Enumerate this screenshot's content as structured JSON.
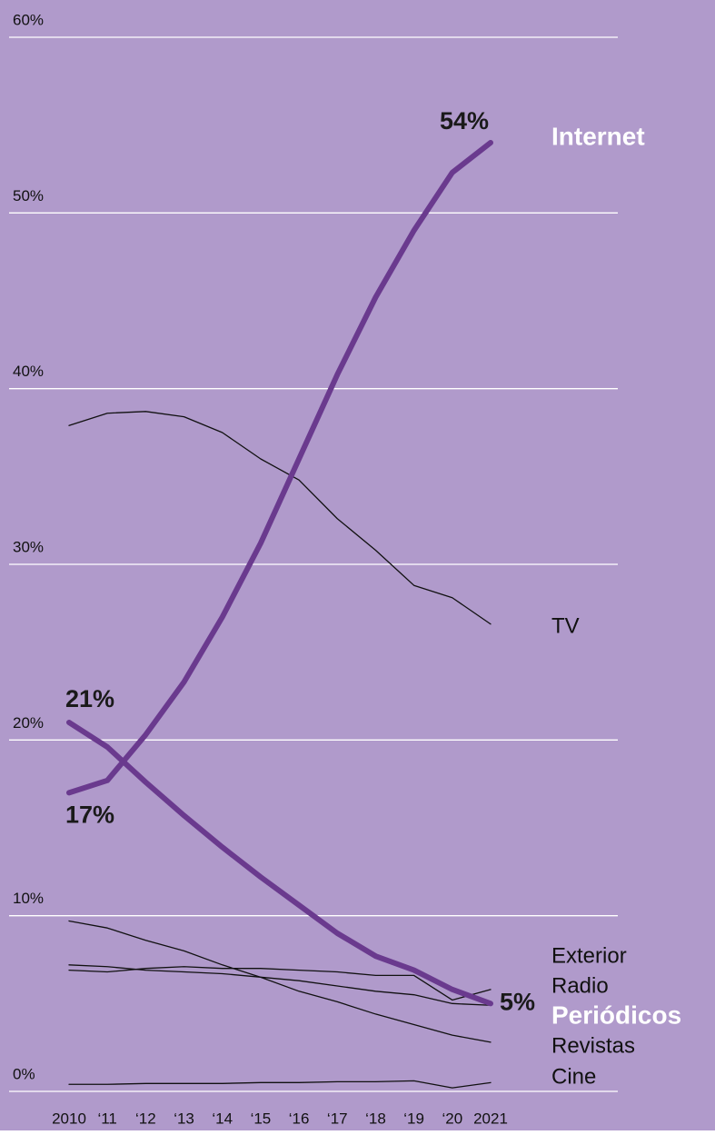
{
  "chart_data": {
    "type": "line",
    "categories": [
      "2010",
      "‘11",
      "‘12",
      "‘13",
      "‘14",
      "‘15",
      "‘16",
      "‘17",
      "‘18",
      "‘19",
      "‘20",
      "2021"
    ],
    "ylim": [
      0,
      60
    ],
    "yticks": [
      {
        "value": 0,
        "label": "0%"
      },
      {
        "value": 10,
        "label": "10%"
      },
      {
        "value": 20,
        "label": "20%"
      },
      {
        "value": 30,
        "label": "30%"
      },
      {
        "value": 40,
        "label": "40%"
      },
      {
        "value": 50,
        "label": "50%"
      },
      {
        "value": 60,
        "label": "60%"
      }
    ],
    "grid": true,
    "background": "#b09acb",
    "series": [
      {
        "name": "TV",
        "color": "#111111",
        "line_width": 1.3,
        "values": [
          37.9,
          38.6,
          38.7,
          38.4,
          37.5,
          36.0,
          34.8,
          32.6,
          30.8,
          28.8,
          28.1,
          26.6
        ]
      },
      {
        "name": "Exterior",
        "color": "#111111",
        "line_width": 1.3,
        "values": [
          6.9,
          6.8,
          7.0,
          7.1,
          7.0,
          7.0,
          6.9,
          6.8,
          6.6,
          6.6,
          5.2,
          5.8
        ]
      },
      {
        "name": "Radio",
        "color": "#111111",
        "line_width": 1.3,
        "values": [
          7.2,
          7.1,
          6.9,
          6.8,
          6.7,
          6.5,
          6.3,
          6.0,
          5.7,
          5.5,
          5.0,
          4.9
        ]
      },
      {
        "name": "Revistas",
        "color": "#111111",
        "line_width": 1.3,
        "values": [
          9.7,
          9.3,
          8.6,
          8.0,
          7.2,
          6.5,
          5.7,
          5.1,
          4.4,
          3.8,
          3.2,
          2.8
        ]
      },
      {
        "name": "Cine",
        "color": "#111111",
        "line_width": 1.3,
        "values": [
          0.4,
          0.4,
          0.45,
          0.45,
          0.45,
          0.5,
          0.5,
          0.55,
          0.55,
          0.6,
          0.2,
          0.5
        ]
      },
      {
        "name": "Periódicos",
        "color": "#6a3a8e",
        "label_color": "#ffffff",
        "line_width": 6,
        "values": [
          21,
          19.6,
          17.6,
          15.7,
          13.9,
          12.2,
          10.6,
          9.0,
          7.7,
          6.9,
          5.8,
          5
        ],
        "value_labels": [
          "21%",
          null,
          null,
          null,
          null,
          null,
          null,
          null,
          null,
          null,
          null,
          "5%"
        ]
      },
      {
        "name": "Internet",
        "color": "#6a3a8e",
        "label_color": "#ffffff",
        "line_width": 6,
        "values": [
          17,
          17.7,
          20.3,
          23.3,
          27.0,
          31.2,
          36.0,
          40.8,
          45.2,
          49.0,
          52.3,
          54
        ],
        "value_labels": [
          "17%",
          null,
          null,
          null,
          null,
          null,
          null,
          null,
          null,
          null,
          null,
          "54%"
        ]
      }
    ]
  }
}
